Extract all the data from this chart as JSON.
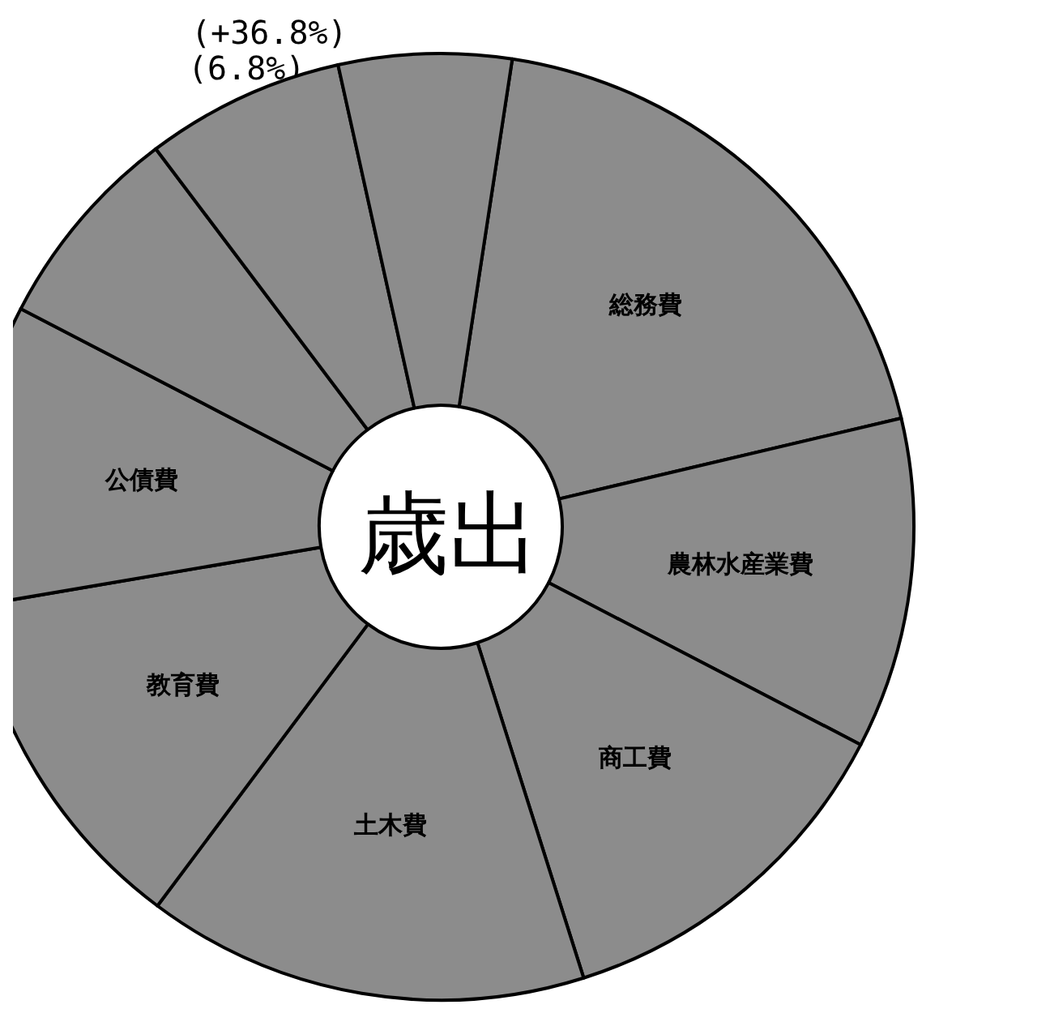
{
  "chart_data": {
    "type": "donut",
    "title": "歳出",
    "categories": [
      "総務費",
      "農林水産業費",
      "商工費",
      "土木費",
      "教育費",
      "公債費",
      null,
      null,
      null
    ],
    "values": [
      18.9,
      11.3,
      12.5,
      15.1,
      12.1,
      10.3,
      7.1,
      6.8,
      5.9
    ],
    "colors": [
      "#8c8c8c",
      "#8c8c8c",
      "#8c8c8c",
      "#8c8c8c",
      "#8c8c8c",
      "#8c8c8c",
      "#8c8c8c",
      "#8c8c8c",
      "#8c8c8c"
    ],
    "annotations": [
      "(+36.8%)",
      "(6.8%)"
    ],
    "legend": false
  }
}
